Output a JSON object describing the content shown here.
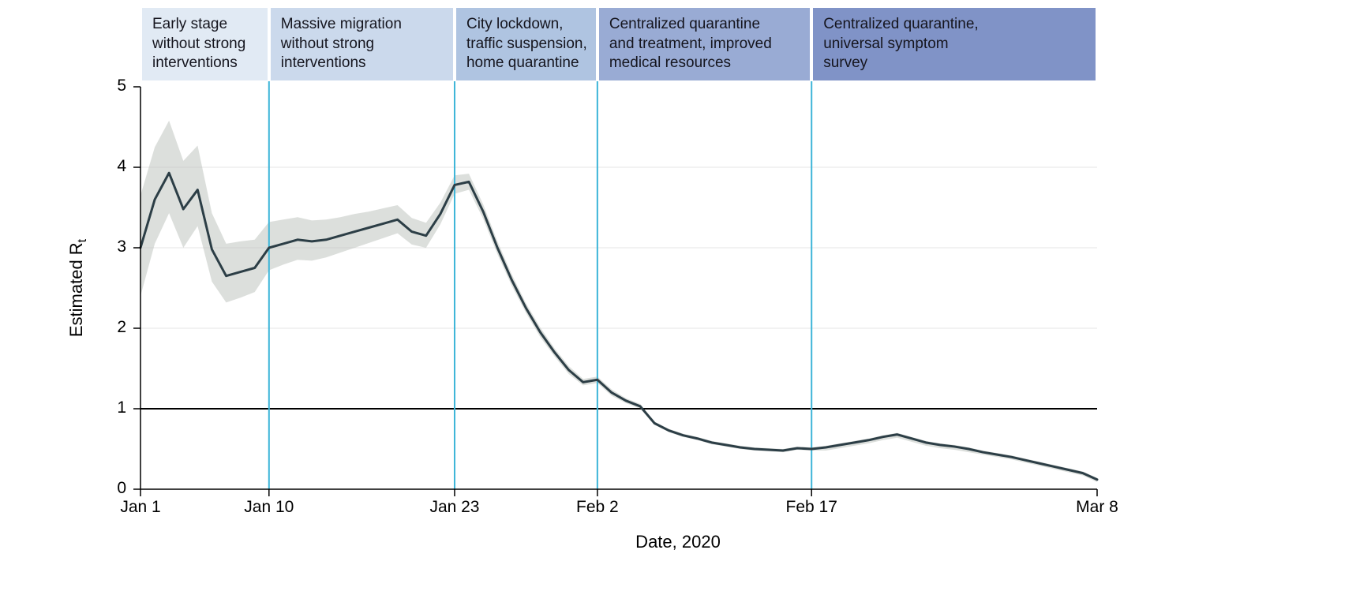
{
  "chart_data": {
    "type": "line",
    "title": "",
    "xlabel": "Date, 2020",
    "ylabel_main": "Estimated R",
    "ylabel_sub": "t",
    "x_encoding": "days since Jan 1, 2020",
    "x_domain_days": [
      0,
      67
    ],
    "ylim": [
      0,
      5
    ],
    "y_ticks": [
      0,
      1,
      2,
      3,
      4,
      5
    ],
    "gridline_values": [
      2,
      3,
      4
    ],
    "reference_line_y": 1,
    "legend": "none",
    "x_ticks": [
      {
        "day": 0,
        "label": "Jan 1"
      },
      {
        "day": 9,
        "label": "Jan 10"
      },
      {
        "day": 22,
        "label": "Jan 23"
      },
      {
        "day": 32,
        "label": "Feb 2"
      },
      {
        "day": 47,
        "label": "Feb 17"
      },
      {
        "day": 67,
        "label": "Mar 8"
      }
    ],
    "stage_divider_days": [
      9,
      22,
      32,
      47
    ],
    "stages": [
      {
        "label": "Early stage\nwithout strong\ninterventions",
        "start_day": 0,
        "end_day": 9,
        "color": "#e1eaf4"
      },
      {
        "label": "Massive migration\nwithout strong\ninterventions",
        "start_day": 9,
        "end_day": 22,
        "color": "#cbd9ec"
      },
      {
        "label": "City lockdown,\ntraffic suspension,\nhome quarantine",
        "start_day": 22,
        "end_day": 32,
        "color": "#afc4e1"
      },
      {
        "label": "Centralized quarantine\nand treatment, improved\nmedical resources",
        "start_day": 32,
        "end_day": 47,
        "color": "#99abd4"
      },
      {
        "label": "Centralized quarantine,\nuniversal symptom\nsurvey",
        "start_day": 47,
        "end_day": 67,
        "color": "#8093c7"
      }
    ],
    "series": [
      {
        "name": "Estimated Rt",
        "color": "#2c3e46",
        "values": [
          3.0,
          3.6,
          3.93,
          3.48,
          3.72,
          2.98,
          2.65,
          2.7,
          2.75,
          3.0,
          3.05,
          3.1,
          3.08,
          3.1,
          3.15,
          3.2,
          3.25,
          3.3,
          3.35,
          3.2,
          3.15,
          3.42,
          3.78,
          3.82,
          3.45,
          3.0,
          2.6,
          2.25,
          1.95,
          1.7,
          1.48,
          1.33,
          1.36,
          1.2,
          1.1,
          1.03,
          0.82,
          0.73,
          0.67,
          0.63,
          0.58,
          0.55,
          0.52,
          0.5,
          0.49,
          0.48,
          0.51,
          0.5,
          0.52,
          0.55,
          0.58,
          0.61,
          0.65,
          0.68,
          0.63,
          0.58,
          0.55,
          0.53,
          0.5,
          0.46,
          0.43,
          0.4,
          0.36,
          0.32,
          0.28,
          0.24,
          0.2,
          0.12
        ]
      }
    ],
    "confidence_band": {
      "color": "#b9c0ba",
      "opacity": 0.5,
      "lower": [
        2.4,
        3.05,
        3.43,
        3.0,
        3.27,
        2.58,
        2.32,
        2.38,
        2.45,
        2.72,
        2.79,
        2.85,
        2.84,
        2.88,
        2.94,
        3.0,
        3.06,
        3.12,
        3.18,
        3.04,
        3.0,
        3.29,
        3.67,
        3.72,
        3.36,
        2.92,
        2.53,
        2.19,
        1.89,
        1.65,
        1.43,
        1.29,
        1.32,
        1.16,
        1.07,
        1.0,
        0.8,
        0.71,
        0.65,
        0.61,
        0.56,
        0.53,
        0.5,
        0.48,
        0.47,
        0.46,
        0.49,
        0.48,
        0.48,
        0.51,
        0.54,
        0.57,
        0.61,
        0.64,
        0.59,
        0.54,
        0.51,
        0.49,
        0.46,
        0.43,
        0.4,
        0.37,
        0.33,
        0.29,
        0.25,
        0.21,
        0.17,
        0.09
      ],
      "upper": [
        3.65,
        4.25,
        4.58,
        4.08,
        4.27,
        3.43,
        3.05,
        3.08,
        3.1,
        3.32,
        3.35,
        3.38,
        3.34,
        3.35,
        3.38,
        3.42,
        3.45,
        3.49,
        3.53,
        3.37,
        3.31,
        3.56,
        3.9,
        3.92,
        3.54,
        3.08,
        2.67,
        2.31,
        2.01,
        1.75,
        1.53,
        1.37,
        1.4,
        1.24,
        1.13,
        1.06,
        0.84,
        0.75,
        0.69,
        0.65,
        0.6,
        0.57,
        0.54,
        0.52,
        0.51,
        0.5,
        0.53,
        0.52,
        0.54,
        0.57,
        0.6,
        0.63,
        0.67,
        0.7,
        0.65,
        0.6,
        0.57,
        0.55,
        0.52,
        0.48,
        0.45,
        0.42,
        0.38,
        0.34,
        0.3,
        0.26,
        0.22,
        0.14
      ]
    },
    "colors": {
      "divider_line": "#3db5d8",
      "axis": "#000000",
      "gridline": "#e4e4e4",
      "reference_line": "#000000",
      "background": "#ffffff"
    }
  }
}
